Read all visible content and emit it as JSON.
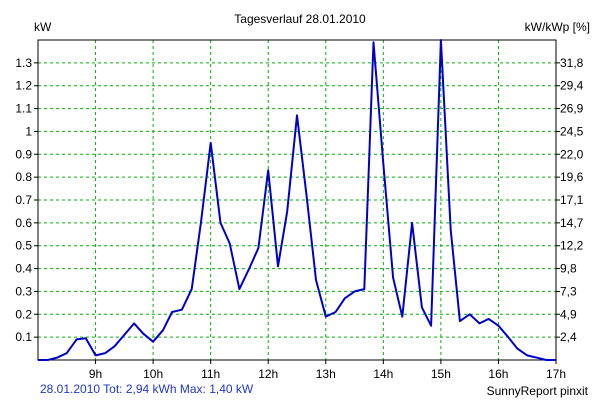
{
  "chart_data": {
    "type": "line",
    "title": "Tagesverlauf 28.01.2010",
    "ylabel_left": "kW",
    "ylabel_right": "kW/kWp [%]",
    "xlim": [
      8.0,
      17.0
    ],
    "ylim": [
      0.0,
      1.4
    ],
    "x_ticks": [
      9,
      10,
      11,
      12,
      13,
      14,
      15,
      16,
      17
    ],
    "x_tick_labels": [
      "9h",
      "10h",
      "11h",
      "12h",
      "13h",
      "14h",
      "15h",
      "16h",
      "17h"
    ],
    "y_ticks_left": [
      0.1,
      0.2,
      0.3,
      0.4,
      0.5,
      0.6,
      0.7,
      0.8,
      0.9,
      1.0,
      1.1,
      1.2,
      1.3
    ],
    "y_tick_labels_left": [
      "0.1",
      "0.2",
      "0.3",
      "0.4",
      "0.5",
      "0.6",
      "0.7",
      "0.8",
      "0.9",
      "1",
      "1.1",
      "1.2",
      "1.3"
    ],
    "y_ticks_right": [
      2.4,
      4.9,
      7.3,
      9.8,
      12.2,
      14.7,
      17.1,
      19.6,
      22.0,
      24.5,
      26.9,
      29.4,
      31.8
    ],
    "y_tick_labels_right": [
      "2,4",
      "4,9",
      "7,3",
      "9,8",
      "12,2",
      "14,7",
      "17,1",
      "19,6",
      "22,0",
      "24,5",
      "26,9",
      "29,4",
      "31,8"
    ],
    "grid": true,
    "series": [
      {
        "x": [
          8.0,
          8.17,
          8.33,
          8.5,
          8.67,
          8.83,
          9.0,
          9.17,
          9.33,
          9.5,
          9.67,
          9.83,
          10.0,
          10.17,
          10.33,
          10.5,
          10.67,
          10.83,
          11.0,
          11.17,
          11.33,
          11.5,
          11.67,
          11.83,
          12.0,
          12.17,
          12.33,
          12.5,
          12.67,
          12.83,
          13.0,
          13.17,
          13.33,
          13.5,
          13.67,
          13.83,
          14.0,
          14.17,
          14.33,
          14.5,
          14.67,
          14.83,
          15.0,
          15.17,
          15.33,
          15.5,
          15.67,
          15.83,
          16.0,
          16.17,
          16.33,
          16.5,
          16.67,
          16.83,
          17.0
        ],
        "y": [
          0.0,
          0.0,
          0.01,
          0.03,
          0.09,
          0.095,
          0.02,
          0.03,
          0.06,
          0.11,
          0.16,
          0.115,
          0.08,
          0.13,
          0.21,
          0.22,
          0.31,
          0.6,
          0.95,
          0.6,
          0.51,
          0.31,
          0.4,
          0.49,
          0.83,
          0.41,
          0.65,
          1.07,
          0.71,
          0.35,
          0.19,
          0.21,
          0.27,
          0.3,
          0.31,
          1.39,
          0.86,
          0.36,
          0.19,
          0.6,
          0.23,
          0.15,
          1.4,
          0.57,
          0.17,
          0.2,
          0.16,
          0.18,
          0.15,
          0.1,
          0.05,
          0.02,
          0.01,
          0.0,
          0.0
        ]
      }
    ],
    "colors": {
      "line": "#0000cc",
      "grid": "#00b400",
      "axis": "#000000"
    }
  },
  "footer_left": "28.01.2010 Tot: 2,94 kWh Max: 1,40 kW",
  "footer_right": "SunnyReport pinxit"
}
